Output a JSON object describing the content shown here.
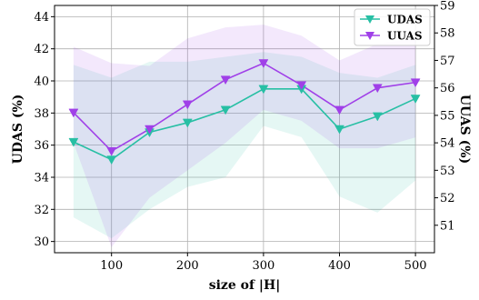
{
  "chart_data": {
    "type": "line",
    "x": [
      50,
      100,
      150,
      200,
      250,
      300,
      350,
      400,
      450,
      500
    ],
    "xlabel": "size of |H|",
    "ylabel_left": "UDAS (%)",
    "ylabel_right": "UUAS (%)",
    "xlim": [
      25,
      525
    ],
    "ylim_left": [
      29.3,
      44.7
    ],
    "ylim_right": [
      50,
      59
    ],
    "xticks": [
      100,
      200,
      300,
      400,
      500
    ],
    "yticks_left": [
      30,
      32,
      34,
      36,
      38,
      40,
      42,
      44
    ],
    "yticks_right": [
      51,
      52,
      53,
      54,
      55,
      56,
      57,
      58,
      59
    ],
    "grid": true,
    "legend_position": "top-right",
    "series": [
      {
        "name": "UDAS",
        "axis": "left",
        "color": "#27bfa4",
        "marker": "triangle-down",
        "values": [
          36.2,
          35.1,
          36.8,
          37.4,
          38.2,
          39.5,
          39.5,
          37.0,
          37.8,
          38.9
        ],
        "band_upper": [
          41.0,
          40.2,
          41.2,
          41.2,
          41.5,
          41.8,
          41.5,
          40.5,
          40.2,
          41.0
        ],
        "band_lower": [
          31.5,
          30.2,
          32.0,
          33.4,
          34.0,
          37.2,
          36.5,
          32.8,
          31.8,
          33.8
        ]
      },
      {
        "name": "UUAS",
        "axis": "right",
        "color": "#a040e8",
        "marker": "triangle-down",
        "values": [
          55.1,
          53.7,
          54.5,
          55.4,
          56.3,
          56.9,
          56.1,
          55.2,
          56.0,
          56.2
        ],
        "band_upper": [
          57.5,
          56.9,
          56.8,
          57.8,
          58.2,
          58.3,
          57.9,
          57.0,
          57.6,
          57.8
        ],
        "band_lower": [
          54.0,
          50.2,
          52.0,
          53.0,
          54.0,
          55.2,
          54.8,
          53.8,
          53.8,
          54.2
        ]
      }
    ]
  }
}
